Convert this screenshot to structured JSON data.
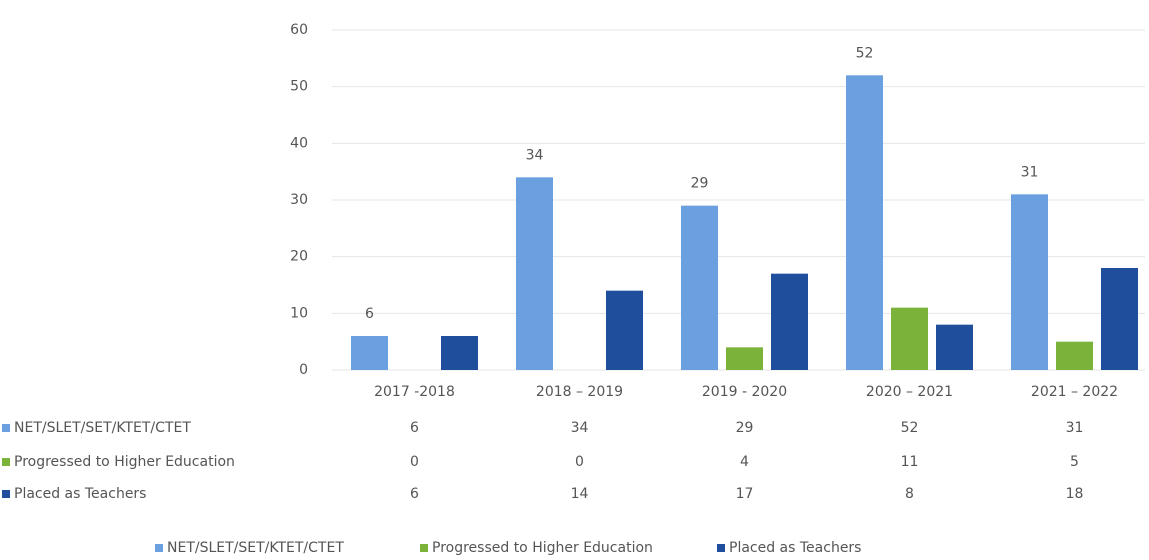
{
  "chart_data": {
    "type": "bar",
    "categories": [
      "2017 -2018",
      "2018 – 2019",
      "2019 - 2020",
      "2020 – 2021",
      "2021 – 2022"
    ],
    "series": [
      {
        "name": "NET/SLET/SET/KTET/CTET",
        "color": "#6a9fe0",
        "values": [
          6,
          34,
          29,
          52,
          31
        ],
        "data_labels": true
      },
      {
        "name": "Progressed to Higher Education",
        "color": "#7bb33a",
        "values": [
          0,
          0,
          4,
          11,
          5
        ],
        "data_labels": false
      },
      {
        "name": "Placed as Teachers",
        "color": "#1f4f9c",
        "values": [
          6,
          14,
          17,
          8,
          18
        ],
        "data_labels": false
      }
    ],
    "ylim": [
      0,
      60
    ],
    "yticks": [
      0,
      10,
      20,
      30,
      40,
      50,
      60
    ],
    "grid": true,
    "legend": "bottom",
    "data_table": true
  }
}
